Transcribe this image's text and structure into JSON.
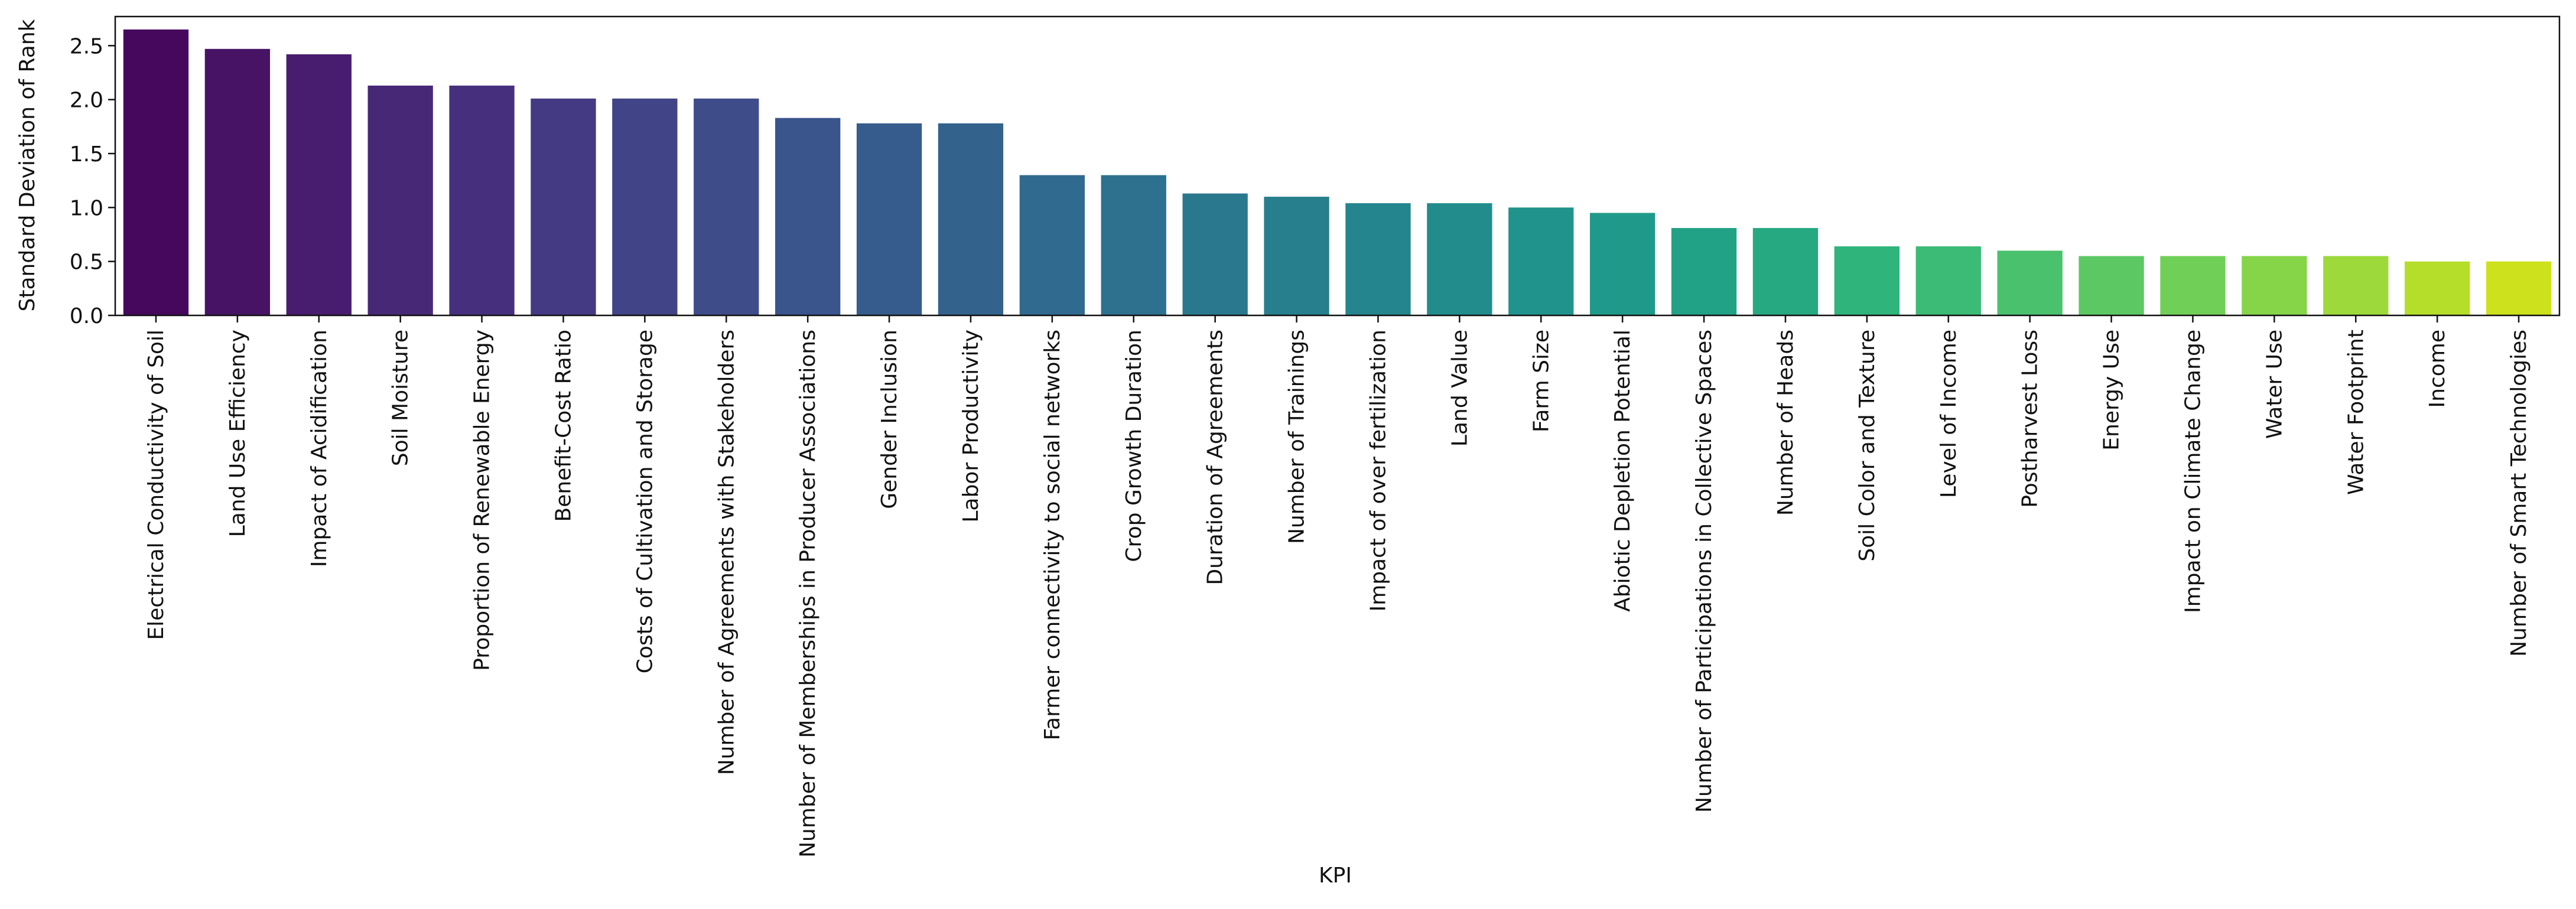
{
  "chart_data": {
    "type": "bar",
    "x_label": "KPI",
    "y_label": "Standard Deviation of Rank",
    "categories": [
      "Electrical Conductivity of Soil",
      "Land Use Efficiency",
      "Impact of Acidification",
      "Soil Moisture",
      "Proportion of Renewable Energy",
      "Benefit-Cost Ratio",
      "Costs of Cultivation and Storage",
      "Number of Agreements with Stakeholders",
      "Number of Memberships in Producer Associations",
      "Gender Inclusion",
      "Labor Productivity",
      "Farmer connectivity to social networks",
      "Crop Growth Duration",
      "Duration of Agreements",
      "Number of Trainings",
      "Impact of over fertilization",
      "Land Value",
      "Farm Size",
      "Abiotic Depletion Potential",
      "Number of Participations in Collective Spaces",
      "Number of Heads",
      "Soil Color and Texture",
      "Level of Income",
      "Postharvest Loss",
      "Energy Use",
      "Impact on Climate Change",
      "Water Use",
      "Water Footprint",
      "Income",
      "Number of Smart Technologies"
    ],
    "values": [
      2.65,
      2.47,
      2.42,
      2.13,
      2.13,
      2.01,
      2.01,
      2.01,
      1.83,
      1.78,
      1.78,
      1.3,
      1.3,
      1.13,
      1.1,
      1.04,
      1.04,
      1.0,
      0.95,
      0.81,
      0.81,
      0.64,
      0.64,
      0.6,
      0.55,
      0.55,
      0.55,
      0.55,
      0.5,
      0.5
    ],
    "colors": [
      "#46085c",
      "#471365",
      "#481d6f",
      "#472877",
      "#46307e",
      "#443a83",
      "#414487",
      "#3e4c8a",
      "#3a548c",
      "#365c8d",
      "#33638d",
      "#306a8e",
      "#2d718e",
      "#2a788e",
      "#277f8e",
      "#25858e",
      "#228c8d",
      "#20938c",
      "#1f9a8a",
      "#21a185",
      "#26a881",
      "#2fb47c",
      "#3bbb75",
      "#4ac16d",
      "#5cc863",
      "#70cf57",
      "#86d549",
      "#9dd93b",
      "#b5de2b",
      "#cde11d"
    ],
    "ylim": [
      0,
      2.77
    ],
    "yticks": [
      {
        "value": 0,
        "label": "0.0"
      },
      0.5,
      {
        "value": 1,
        "label": "1.0"
      },
      1.5,
      {
        "value": 2,
        "label": "2.0"
      },
      2.5
    ],
    "grid": false
  }
}
